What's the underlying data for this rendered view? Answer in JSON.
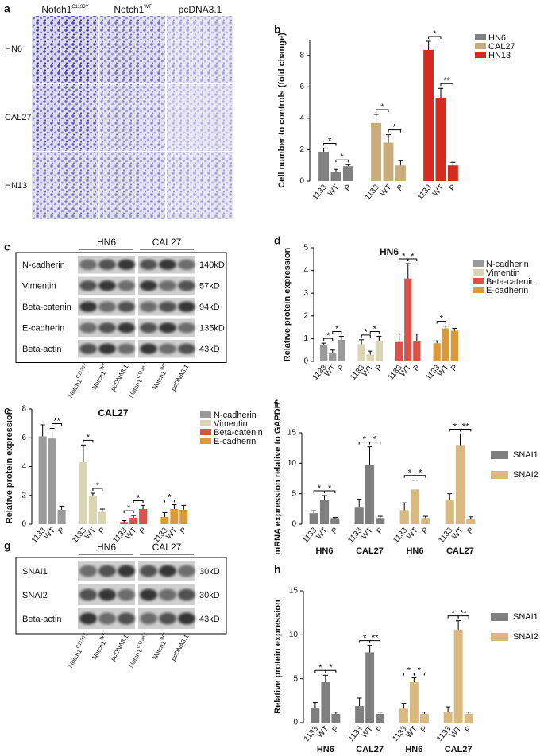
{
  "panel_labels": [
    "a",
    "b",
    "c",
    "d",
    "e",
    "f",
    "g",
    "h"
  ],
  "panel_a": {
    "columns": [
      {
        "text": "Notch1",
        "sup": "C1133Y"
      },
      {
        "text": "Notch1",
        "sup": "WT"
      },
      {
        "text": "pcDNA3.1"
      }
    ],
    "rows": [
      "HN6",
      "CAL27",
      "HN13"
    ]
  },
  "panel_c": {
    "groups": [
      "HN6",
      "CAL27"
    ],
    "proteins": [
      {
        "name": "N-cadherin",
        "size": "140kD"
      },
      {
        "name": "Vimentin",
        "size": "57kD"
      },
      {
        "name": "Beta-catenin",
        "size": "94kD"
      },
      {
        "name": "E-cadherin",
        "size": "135kD"
      },
      {
        "name": "Beta-actin",
        "size": "43kD"
      }
    ],
    "lanes": [
      {
        "text": "Notch1",
        "sup": "C1133Y"
      },
      {
        "text": "Notch1",
        "sup": "WT"
      },
      {
        "text": "pcDNA3.1"
      }
    ]
  },
  "panel_g": {
    "groups": [
      "HN6",
      "CAL27"
    ],
    "proteins": [
      {
        "name": "SNAI1",
        "size": "30kD"
      },
      {
        "name": "SNAI2",
        "size": "30kD"
      },
      {
        "name": "Beta-actin",
        "size": "43kD"
      }
    ],
    "lanes": [
      {
        "text": "Notch1",
        "sup": "C1133Y"
      },
      {
        "text": "Notch1",
        "sup": "WT"
      },
      {
        "text": "pcDNA3.1"
      }
    ]
  },
  "chart_data": [
    {
      "type": "bar",
      "ylabel": "Cell number to controls (fold change)",
      "categories": [
        "1133",
        "WT",
        "P"
      ],
      "ylim": [
        0,
        9
      ],
      "yticks": [
        0,
        2,
        4,
        6,
        8
      ],
      "series": [
        {
          "name": "HN6",
          "color": "#808080",
          "groups": [
            {
              "values": [
                1.85,
                0.6,
                0.95
              ],
              "errors": [
                0.25,
                0.15,
                0.1
              ],
              "brackets": [
                {
                  "from": 0,
                  "to": 1,
                  "label": "*"
                },
                {
                  "from": 1,
                  "to": 2,
                  "label": "*"
                }
              ]
            }
          ]
        },
        {
          "name": "CAL27",
          "color": "#c9ad7c",
          "groups": [
            {
              "values": [
                3.7,
                2.45,
                1.0
              ],
              "errors": [
                0.55,
                0.5,
                0.3
              ],
              "brackets": [
                {
                  "from": 0,
                  "to": 1,
                  "label": "*"
                },
                {
                  "from": 1,
                  "to": 2,
                  "label": "*"
                }
              ]
            }
          ]
        },
        {
          "name": "HN13",
          "color": "#d42a20",
          "groups": [
            {
              "values": [
                8.35,
                5.3,
                1.0
              ],
              "errors": [
                0.55,
                0.6,
                0.2
              ],
              "brackets": [
                {
                  "from": 0,
                  "to": 1,
                  "label": "*"
                },
                {
                  "from": 1,
                  "to": 2,
                  "label": "**"
                }
              ]
            }
          ]
        }
      ]
    },
    {
      "type": "bar",
      "title": "HN6",
      "ylabel": "Relative protein expression",
      "categories": [
        "1133",
        "WT",
        "P"
      ],
      "ylim": [
        0,
        5
      ],
      "yticks": [
        0,
        1,
        2,
        3,
        4,
        5
      ],
      "series": [
        {
          "name": "N-cadherin",
          "color": "#9a9a9a",
          "groups": [
            {
              "values": [
                0.7,
                0.35,
                0.95
              ],
              "errors": [
                0.1,
                0.15,
                0.15
              ],
              "brackets": [
                {
                  "from": 0,
                  "to": 1,
                  "label": "*"
                },
                {
                  "from": 1,
                  "to": 2,
                  "label": "*"
                }
              ]
            }
          ]
        },
        {
          "name": "Vimentin",
          "color": "#d9d5b2",
          "groups": [
            {
              "values": [
                0.75,
                0.3,
                0.9
              ],
              "errors": [
                0.2,
                0.15,
                0.2
              ],
              "brackets": [
                {
                  "from": 0,
                  "to": 1,
                  "label": "*"
                },
                {
                  "from": 1,
                  "to": 2,
                  "label": "*"
                }
              ]
            }
          ]
        },
        {
          "name": "Beta-catenin",
          "color": "#d9534a",
          "groups": [
            {
              "values": [
                0.85,
                3.65,
                0.9
              ],
              "errors": [
                0.35,
                0.65,
                0.3
              ],
              "brackets": [
                {
                  "from": 0,
                  "to": 1,
                  "label": "*"
                },
                {
                  "from": 1,
                  "to": 2,
                  "label": "*"
                }
              ]
            }
          ]
        },
        {
          "name": "E-cadherin",
          "color": "#d99a3a",
          "groups": [
            {
              "values": [
                0.8,
                1.45,
                1.35
              ],
              "errors": [
                0.1,
                0.1,
                0.1
              ],
              "brackets": [
                {
                  "from": 0,
                  "to": 1,
                  "label": "*"
                }
              ]
            }
          ]
        }
      ]
    },
    {
      "type": "bar",
      "title": "CAL27",
      "ylabel": "Relative protein expression",
      "categories": [
        "1133",
        "WT",
        "P"
      ],
      "ylim": [
        0,
        8
      ],
      "yticks": [
        0,
        2,
        4,
        6,
        8
      ],
      "series": [
        {
          "name": "N-cadherin",
          "color": "#9a9a9a",
          "groups": [
            {
              "values": [
                6.1,
                5.95,
                1.0
              ],
              "errors": [
                0.8,
                0.7,
                0.25
              ],
              "brackets": [
                {
                  "from": 1,
                  "to": 2,
                  "label": "**"
                }
              ]
            }
          ]
        },
        {
          "name": "Vimentin",
          "color": "#d9d5b2",
          "groups": [
            {
              "values": [
                4.3,
                1.95,
                0.85
              ],
              "errors": [
                1.2,
                0.2,
                0.2
              ],
              "brackets": [
                {
                  "from": 0,
                  "to": 1,
                  "label": "*"
                },
                {
                  "from": 1,
                  "to": 2,
                  "label": "*"
                }
              ]
            }
          ]
        },
        {
          "name": "Beta-catenin",
          "color": "#d9534a",
          "groups": [
            {
              "values": [
                0.15,
                0.45,
                1.05
              ],
              "errors": [
                0.1,
                0.15,
                0.25
              ],
              "brackets": [
                {
                  "from": 0,
                  "to": 1,
                  "label": "*"
                },
                {
                  "from": 1,
                  "to": 2,
                  "label": "*"
                }
              ]
            }
          ]
        },
        {
          "name": "E-cadherin",
          "color": "#d99a3a",
          "groups": [
            {
              "values": [
                0.5,
                1.05,
                1.0
              ],
              "errors": [
                0.3,
                0.3,
                0.3
              ],
              "brackets": [
                {
                  "from": 0,
                  "to": 1,
                  "label": "*"
                }
              ]
            }
          ]
        }
      ]
    },
    {
      "type": "bar",
      "ylabel": "mRNA expression relative to GAPDH",
      "categories": [
        "1133",
        "WT",
        "P"
      ],
      "ylim": [
        0,
        15
      ],
      "yticks": [
        0,
        5,
        10,
        15
      ],
      "series": [
        {
          "name": "SNAI1",
          "color": "#7f7f7f",
          "groups": [
            {
              "label": "HN6",
              "values": [
                1.8,
                4.0,
                1.0
              ],
              "errors": [
                0.4,
                0.7,
                0.1
              ],
              "brackets": [
                {
                  "from": 0,
                  "to": 1,
                  "label": "*"
                },
                {
                  "from": 1,
                  "to": 2,
                  "label": "*"
                }
              ]
            },
            {
              "label": "CAL27",
              "values": [
                2.7,
                9.7,
                1.0
              ],
              "errors": [
                1.4,
                3.0,
                0.3
              ],
              "brackets": [
                {
                  "from": 0,
                  "to": 1,
                  "label": "*"
                },
                {
                  "from": 1,
                  "to": 2,
                  "label": "*"
                }
              ]
            }
          ]
        },
        {
          "name": "SNAI2",
          "color": "#d9b97f",
          "groups": [
            {
              "label": "HN6",
              "values": [
                2.3,
                5.7,
                1.0
              ],
              "errors": [
                1.2,
                1.5,
                0.3
              ],
              "brackets": [
                {
                  "from": 0,
                  "to": 1,
                  "label": "*"
                },
                {
                  "from": 1,
                  "to": 2,
                  "label": "*"
                }
              ]
            },
            {
              "label": "CAL27",
              "values": [
                4.0,
                13.0,
                0.9
              ],
              "errors": [
                1.0,
                1.8,
                0.3
              ],
              "brackets": [
                {
                  "from": 0,
                  "to": 1,
                  "label": "*"
                },
                {
                  "from": 1,
                  "to": 2,
                  "label": "**"
                }
              ]
            }
          ]
        }
      ]
    },
    {
      "type": "bar",
      "ylabel": "Relative protein expression",
      "categories": [
        "1133",
        "WT",
        "P"
      ],
      "ylim": [
        0,
        15
      ],
      "yticks": [
        0,
        5,
        10,
        15
      ],
      "series": [
        {
          "name": "SNAI1",
          "color": "#7f7f7f",
          "groups": [
            {
              "label": "HN6",
              "values": [
                1.7,
                4.6,
                1.0
              ],
              "errors": [
                0.6,
                0.8,
                0.2
              ],
              "brackets": [
                {
                  "from": 0,
                  "to": 1,
                  "label": "*"
                },
                {
                  "from": 1,
                  "to": 2,
                  "label": "*"
                }
              ]
            },
            {
              "label": "CAL27",
              "values": [
                1.9,
                8.0,
                1.0
              ],
              "errors": [
                0.9,
                0.8,
                0.2
              ],
              "brackets": [
                {
                  "from": 0,
                  "to": 1,
                  "label": "*"
                },
                {
                  "from": 1,
                  "to": 2,
                  "label": "**"
                }
              ]
            }
          ]
        },
        {
          "name": "SNAI2",
          "color": "#d9b97f",
          "groups": [
            {
              "label": "HN6",
              "values": [
                1.6,
                4.6,
                1.0
              ],
              "errors": [
                0.6,
                0.5,
                0.2
              ],
              "brackets": [
                {
                  "from": 0,
                  "to": 1,
                  "label": "*"
                },
                {
                  "from": 1,
                  "to": 2,
                  "label": "*"
                }
              ]
            },
            {
              "label": "CAL27",
              "values": [
                1.2,
                10.6,
                1.0
              ],
              "errors": [
                0.6,
                1.0,
                0.2
              ],
              "brackets": [
                {
                  "from": 0,
                  "to": 1,
                  "label": "*"
                },
                {
                  "from": 1,
                  "to": 2,
                  "label": "**"
                }
              ]
            }
          ]
        }
      ]
    }
  ]
}
